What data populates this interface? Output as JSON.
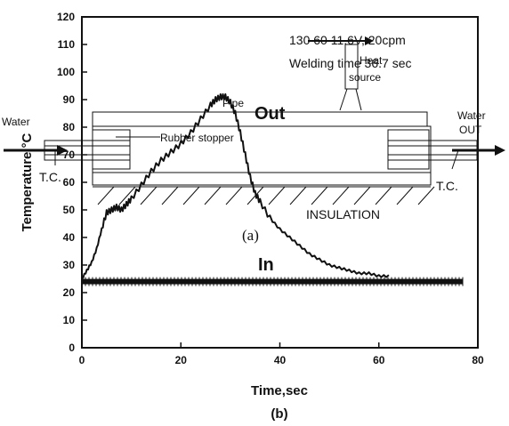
{
  "chart_data": {
    "type": "line",
    "xlabel": "Time,sec",
    "ylabel": "Temperature,°C",
    "caption": "(b)",
    "xlim": [
      0,
      80
    ],
    "ylim": [
      0,
      120
    ],
    "x_ticks": [
      "0",
      "20",
      "40",
      "60",
      "80"
    ],
    "y_ticks": [
      "0",
      "10",
      "20",
      "30",
      "40",
      "50",
      "60",
      "70",
      "80",
      "90",
      "100",
      "110",
      "120"
    ],
    "grid": false,
    "series": [
      {
        "name": "Out",
        "x": [
          0,
          1,
          2,
          3,
          4,
          5,
          6,
          7,
          8,
          9,
          10,
          12,
          14,
          16,
          18,
          20,
          22,
          24,
          26,
          27,
          28,
          29,
          30,
          31,
          32,
          33,
          34,
          35,
          36,
          38,
          40,
          42,
          44,
          46,
          48,
          50,
          52,
          54,
          56,
          58,
          60,
          62
        ],
        "y": [
          25,
          28,
          31,
          36,
          43,
          49,
          50,
          51,
          50,
          52,
          54,
          59,
          64,
          68,
          71,
          74,
          78,
          83,
          88,
          90,
          91,
          91,
          89,
          85,
          78,
          70,
          62,
          56,
          53,
          47,
          43,
          40,
          37,
          34,
          32,
          30,
          29,
          28,
          27,
          27,
          26,
          26
        ]
      },
      {
        "name": "In",
        "x": [
          0,
          10,
          20,
          30,
          40,
          50,
          60,
          70,
          77
        ],
        "y": [
          24,
          24,
          24,
          24,
          24,
          24,
          24,
          24,
          24
        ]
      }
    ],
    "annotations": {
      "weld_conditions_1": "130 60   11.6V, 20cpm",
      "weld_conditions_2": "Welding time 36.7 sec",
      "heat_source_1": "Heat",
      "heat_source_2": "source",
      "pipe": "Pipe",
      "out": "Out",
      "in": "In",
      "water_in": "Water",
      "water_out_1": "Water",
      "water_out_2": "OUT",
      "rubber_stopper": "Rubber stopper",
      "tc_left": "T.C.",
      "tc_right": "T.C.",
      "insulation": "INSULATION",
      "panel": "(a)"
    }
  }
}
